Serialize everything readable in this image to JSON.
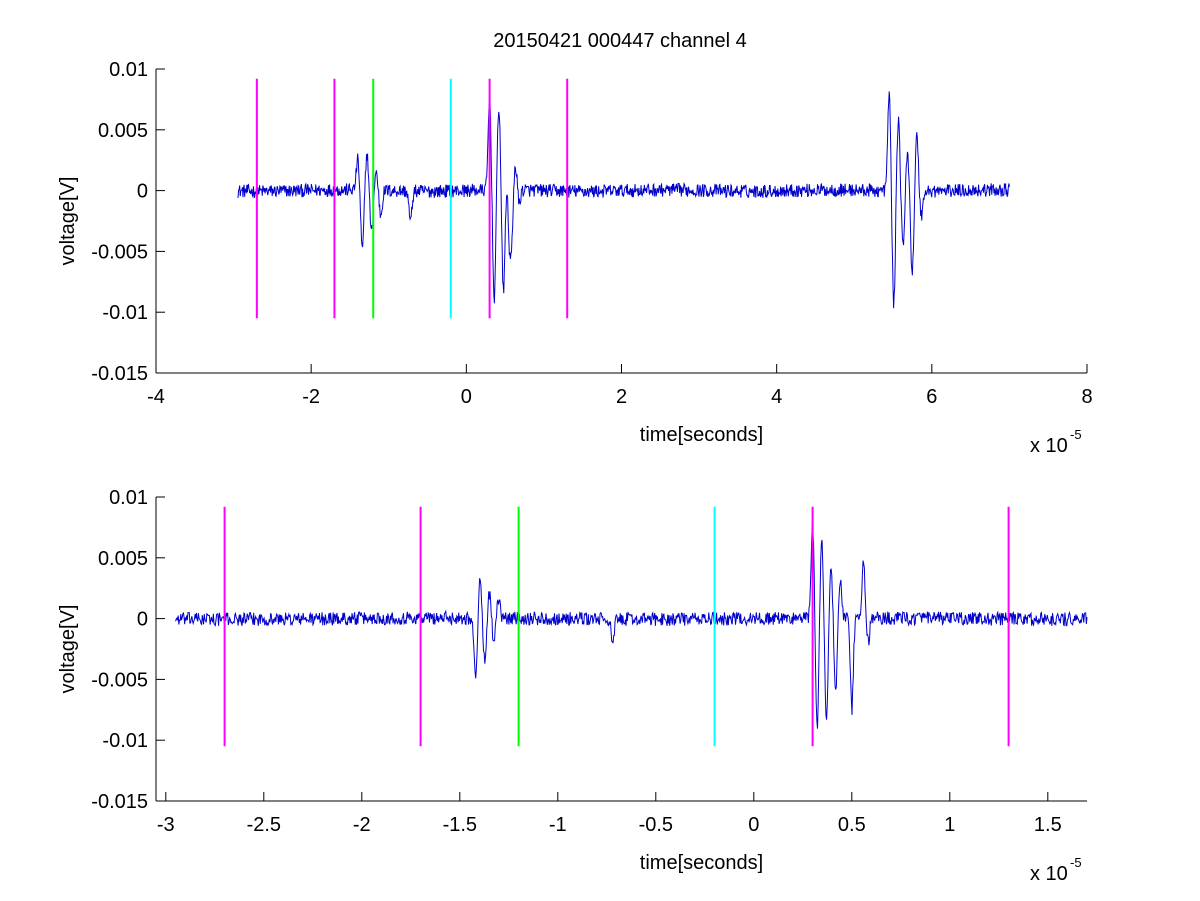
{
  "figure": {
    "title": "20150421 000447 channel 4"
  },
  "chart_data": [
    {
      "type": "line",
      "title": "20150421 000447 channel 4",
      "xlabel": "time[seconds]",
      "ylabel": "voltage[V]",
      "x_multiplier_label": "x 10",
      "x_multiplier_exponent": "-5",
      "xlim": [
        -4,
        8
      ],
      "ylim": [
        -0.015,
        0.01
      ],
      "xticks": [
        -4,
        -2,
        0,
        2,
        4,
        6,
        8
      ],
      "xtick_labels": [
        "-4",
        "-2",
        "0",
        "2",
        "4",
        "6",
        "8"
      ],
      "yticks": [
        0.01,
        0.005,
        0,
        -0.005,
        -0.01,
        -0.015
      ],
      "ytick_labels": [
        "0.01",
        "0.005",
        "0",
        "-0.005",
        "-0.01",
        "-0.015"
      ],
      "grid": false,
      "signal": {
        "color": "#0000cc",
        "x_range": [
          -2.95,
          7.0
        ],
        "events": [
          {
            "x": -1.4,
            "amps": [
              0.0025,
              -0.005,
              0.003,
              -0.0035,
              0.0015,
              -0.002
            ]
          },
          {
            "x": -0.72,
            "amps": [
              -0.0025
            ]
          },
          {
            "x": 0.3,
            "amps": [
              0.0075,
              -0.009,
              0.007,
              -0.0085,
              0.004,
              -0.0065,
              0.003
            ]
          },
          {
            "x": 0.55,
            "amps": [
              -0.0075,
              0.0045,
              -0.003
            ]
          },
          {
            "x": 5.45,
            "amps": [
              0.008,
              -0.0095,
              0.006,
              -0.0045,
              0.003,
              -0.0068,
              0.0045,
              -0.002
            ]
          }
        ]
      },
      "markers": [
        {
          "x": -2.7,
          "color": "#ff00ff"
        },
        {
          "x": -1.7,
          "color": "#ff00ff"
        },
        {
          "x": -1.2,
          "color": "#00ff00"
        },
        {
          "x": -0.2,
          "color": "#00ffff"
        },
        {
          "x": 0.3,
          "color": "#ff00ff"
        },
        {
          "x": 1.3,
          "color": "#ff00ff"
        }
      ],
      "marker_ylim": [
        -0.0105,
        0.0092
      ]
    },
    {
      "type": "line",
      "xlabel": "time[seconds]",
      "ylabel": "voltage[V]",
      "x_multiplier_label": "x 10",
      "x_multiplier_exponent": "-5",
      "xlim": [
        -3.05,
        1.7
      ],
      "ylim": [
        -0.015,
        0.01
      ],
      "xticks": [
        -3,
        -2.5,
        -2,
        -1.5,
        -1,
        -0.5,
        0,
        0.5,
        1,
        1.5
      ],
      "xtick_labels": [
        "-3",
        "-2.5",
        "-2",
        "-1.5",
        "-1",
        "-0.5",
        "0",
        "0.5",
        "1",
        "1.5"
      ],
      "yticks": [
        0.01,
        0.005,
        0,
        -0.005,
        -0.01,
        -0.015
      ],
      "ytick_labels": [
        "0.01",
        "0.005",
        "0",
        "-0.005",
        "-0.01",
        "-0.015"
      ],
      "grid": false,
      "signal": {
        "color": "#0000cc",
        "x_range": [
          -2.95,
          1.7
        ],
        "events": [
          {
            "x": -1.42,
            "amps": [
              -0.005,
              0.003,
              -0.0035,
              0.002,
              -0.002,
              0.0015
            ]
          },
          {
            "x": -0.72,
            "amps": [
              -0.0022
            ]
          },
          {
            "x": 0.3,
            "amps": [
              0.0077,
              -0.009,
              0.0065,
              -0.0085,
              0.004,
              -0.006,
              0.003
            ]
          },
          {
            "x": 0.5,
            "amps": [
              -0.0075
            ]
          },
          {
            "x": 0.56,
            "amps": [
              0.0045,
              -0.002
            ]
          }
        ]
      },
      "markers": [
        {
          "x": -2.7,
          "color": "#ff00ff"
        },
        {
          "x": -1.7,
          "color": "#ff00ff"
        },
        {
          "x": -1.2,
          "color": "#00ff00"
        },
        {
          "x": -0.2,
          "color": "#00ffff"
        },
        {
          "x": 0.3,
          "color": "#ff00ff"
        },
        {
          "x": 1.3,
          "color": "#ff00ff"
        }
      ],
      "marker_ylim": [
        -0.0105,
        0.0092
      ]
    }
  ]
}
